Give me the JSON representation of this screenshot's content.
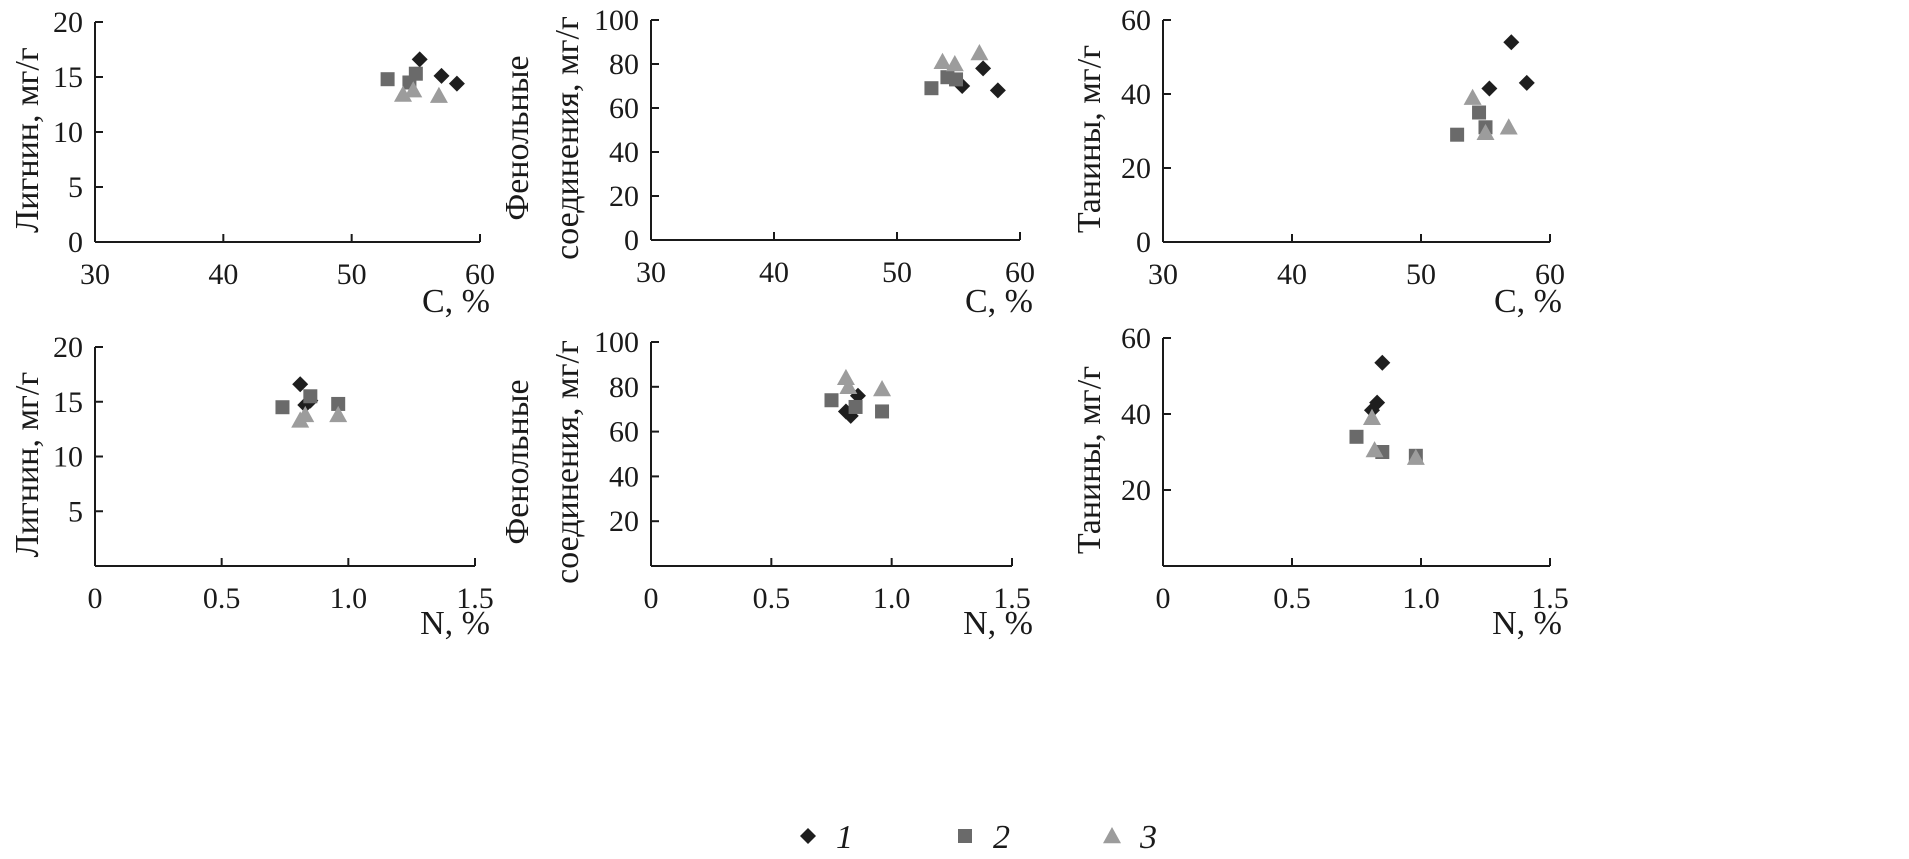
{
  "colors": {
    "series_1": "#1e1e1e",
    "series_2": "#6a6a6a",
    "series_3": "#9c9c9c",
    "axis": "#1a1a1a"
  },
  "legend": {
    "placement": "bottom-center",
    "entries": [
      {
        "label": "1",
        "marker": "diamond"
      },
      {
        "label": "2",
        "marker": "square"
      },
      {
        "label": "3",
        "marker": "triangle"
      }
    ]
  },
  "chart_data": [
    {
      "type": "scatter",
      "xlabel": "C, %",
      "ylabel": [
        "Лигнин, мг/г"
      ],
      "xlim": [
        30,
        60
      ],
      "ylim": [
        0,
        20
      ],
      "xticks": [
        "30",
        "40",
        "50",
        "60"
      ],
      "yticks": [
        "0",
        "5",
        "10",
        "15",
        "20"
      ],
      "series": [
        {
          "name": "1",
          "marker": "diamond",
          "points": [
            [
              55.3,
              16.6
            ],
            [
              57.0,
              15.1
            ],
            [
              58.2,
              14.4
            ]
          ]
        },
        {
          "name": "2",
          "marker": "square",
          "points": [
            [
              52.8,
              14.8
            ],
            [
              54.5,
              14.5
            ],
            [
              55.0,
              15.3
            ]
          ]
        },
        {
          "name": "3",
          "marker": "triangle",
          "points": [
            [
              54.0,
              13.4
            ],
            [
              54.8,
              13.8
            ],
            [
              56.8,
              13.3
            ]
          ]
        }
      ]
    },
    {
      "type": "scatter",
      "xlabel": "C, %",
      "ylabel": [
        "Фенольные",
        "соединения, мг/г"
      ],
      "xlim": [
        30,
        60
      ],
      "ylim": [
        0,
        100
      ],
      "xticks": [
        "30",
        "40",
        "50",
        "60"
      ],
      "yticks": [
        "0",
        "20",
        "40",
        "60",
        "80",
        "100"
      ],
      "series": [
        {
          "name": "1",
          "marker": "diamond",
          "points": [
            [
              55.3,
              70
            ],
            [
              57.0,
              78
            ],
            [
              58.2,
              68
            ]
          ]
        },
        {
          "name": "2",
          "marker": "square",
          "points": [
            [
              52.8,
              69
            ],
            [
              54.1,
              74
            ],
            [
              54.8,
              73
            ]
          ]
        },
        {
          "name": "3",
          "marker": "triangle",
          "points": [
            [
              53.7,
              81
            ],
            [
              54.7,
              80
            ],
            [
              56.7,
              85
            ]
          ]
        }
      ]
    },
    {
      "type": "scatter",
      "xlabel": "C, %",
      "ylabel": [
        "Танины, мг/г"
      ],
      "xlim": [
        30,
        60
      ],
      "ylim": [
        0,
        60
      ],
      "xticks": [
        "30",
        "40",
        "50",
        "60"
      ],
      "yticks": [
        "0",
        "20",
        "40",
        "60"
      ],
      "series": [
        {
          "name": "1",
          "marker": "diamond",
          "points": [
            [
              55.3,
              41.5
            ],
            [
              57.0,
              54
            ],
            [
              58.2,
              43
            ]
          ]
        },
        {
          "name": "2",
          "marker": "square",
          "points": [
            [
              52.8,
              29
            ],
            [
              54.5,
              35
            ],
            [
              55.0,
              31
            ]
          ]
        },
        {
          "name": "3",
          "marker": "triangle",
          "points": [
            [
              54.0,
              39
            ],
            [
              55.0,
              29.5
            ],
            [
              56.8,
              31
            ]
          ]
        }
      ]
    },
    {
      "type": "scatter",
      "xlabel": "N, %",
      "ylabel": [
        "Лигнин, мг/г"
      ],
      "xlim": [
        0,
        1.5
      ],
      "ylim": [
        0,
        20
      ],
      "xticks": [
        "0",
        "0.5",
        "1.0",
        "1.5"
      ],
      "yticks": [
        "5",
        "10",
        "15",
        "20"
      ],
      "series": [
        {
          "name": "1",
          "marker": "diamond",
          "points": [
            [
              0.81,
              16.6
            ],
            [
              0.83,
              14.7
            ],
            [
              0.85,
              15.1
            ]
          ]
        },
        {
          "name": "2",
          "marker": "square",
          "points": [
            [
              0.74,
              14.5
            ],
            [
              0.85,
              15.5
            ],
            [
              0.96,
              14.8
            ]
          ]
        },
        {
          "name": "3",
          "marker": "triangle",
          "points": [
            [
              0.81,
              13.3
            ],
            [
              0.83,
              13.8
            ],
            [
              0.96,
              13.8
            ]
          ]
        }
      ]
    },
    {
      "type": "scatter",
      "xlabel": "N, %",
      "ylabel": [
        "Фенольные",
        "соединения, мг/г"
      ],
      "xlim": [
        0,
        1.5
      ],
      "ylim": [
        0,
        100
      ],
      "xticks": [
        "0",
        "0.5",
        "1.0",
        "1.5"
      ],
      "yticks": [
        "20",
        "40",
        "60",
        "80",
        "100"
      ],
      "series": [
        {
          "name": "1",
          "marker": "diamond",
          "points": [
            [
              0.81,
              69
            ],
            [
              0.83,
              67
            ],
            [
              0.86,
              76
            ]
          ]
        },
        {
          "name": "2",
          "marker": "square",
          "points": [
            [
              0.75,
              74
            ],
            [
              0.85,
              71
            ],
            [
              0.96,
              69
            ]
          ]
        },
        {
          "name": "3",
          "marker": "triangle",
          "points": [
            [
              0.81,
              84
            ],
            [
              0.82,
              80
            ],
            [
              0.96,
              79
            ]
          ]
        }
      ]
    },
    {
      "type": "scatter",
      "xlabel": "N, %",
      "ylabel": [
        "Танины, мг/г"
      ],
      "xlim": [
        0,
        1.5
      ],
      "ylim": [
        0,
        60
      ],
      "xticks": [
        "0",
        "0.5",
        "1.0",
        "1.5"
      ],
      "yticks": [
        "20",
        "40",
        "60"
      ],
      "series": [
        {
          "name": "1",
          "marker": "diamond",
          "points": [
            [
              0.81,
              41
            ],
            [
              0.83,
              43
            ],
            [
              0.85,
              53.5
            ]
          ]
        },
        {
          "name": "2",
          "marker": "square",
          "points": [
            [
              0.75,
              34
            ],
            [
              0.85,
              30
            ],
            [
              0.98,
              29
            ]
          ]
        },
        {
          "name": "3",
          "marker": "triangle",
          "points": [
            [
              0.81,
              39
            ],
            [
              0.82,
              30.5
            ],
            [
              0.98,
              28.5
            ]
          ]
        }
      ]
    }
  ]
}
